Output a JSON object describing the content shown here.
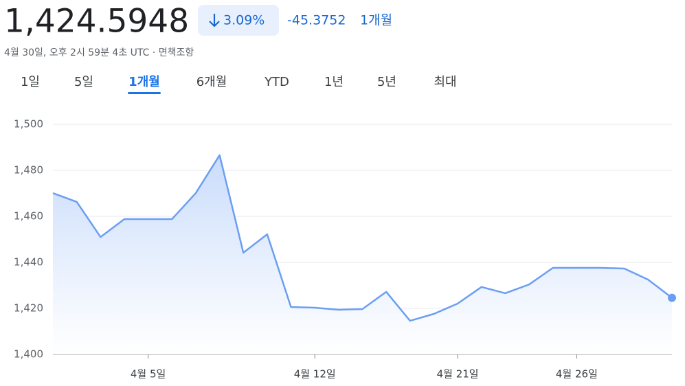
{
  "header": {
    "price": "1,424.5948",
    "change_percent": "3.09%",
    "change_value": "-45.3752",
    "change_period": "1개월",
    "timestamp": "4월 30일, 오후 2시 59분 4초 UTC · 면책조항"
  },
  "tabs": {
    "items": [
      "1일",
      "5일",
      "1개월",
      "6개월",
      "YTD",
      "1년",
      "5년",
      "최대"
    ],
    "active": 2
  },
  "chart_data": {
    "type": "area",
    "categories": [
      null,
      null,
      null,
      null,
      "4월 5일",
      null,
      null,
      null,
      null,
      null,
      null,
      "4월 12일",
      null,
      null,
      null,
      null,
      null,
      "4월 21일",
      null,
      null,
      null,
      null,
      "4월 26일",
      null,
      null,
      null,
      null
    ],
    "values": [
      1470.1,
      1466.3,
      1451.0,
      1458.8,
      1458.8,
      1458.8,
      1470.1,
      1486.6,
      1444.2,
      1452.2,
      1420.6,
      1420.3,
      1419.4,
      1419.7,
      1427.2,
      1414.6,
      1417.6,
      1422.1,
      1429.3,
      1426.6,
      1430.4,
      1437.6,
      1437.6,
      1437.6,
      1437.3,
      1432.5,
      1424.6
    ],
    "color": "#6b9ef3",
    "ylim": [
      1400,
      1500
    ],
    "yticks": [
      {
        "value": 1400,
        "label": "1,400"
      },
      {
        "value": 1420,
        "label": "1,420"
      },
      {
        "value": 1440,
        "label": "1,440"
      },
      {
        "value": 1460,
        "label": "1,460"
      },
      {
        "value": 1480,
        "label": "1,480"
      },
      {
        "value": 1500,
        "label": "1,500"
      }
    ],
    "grid": true
  }
}
